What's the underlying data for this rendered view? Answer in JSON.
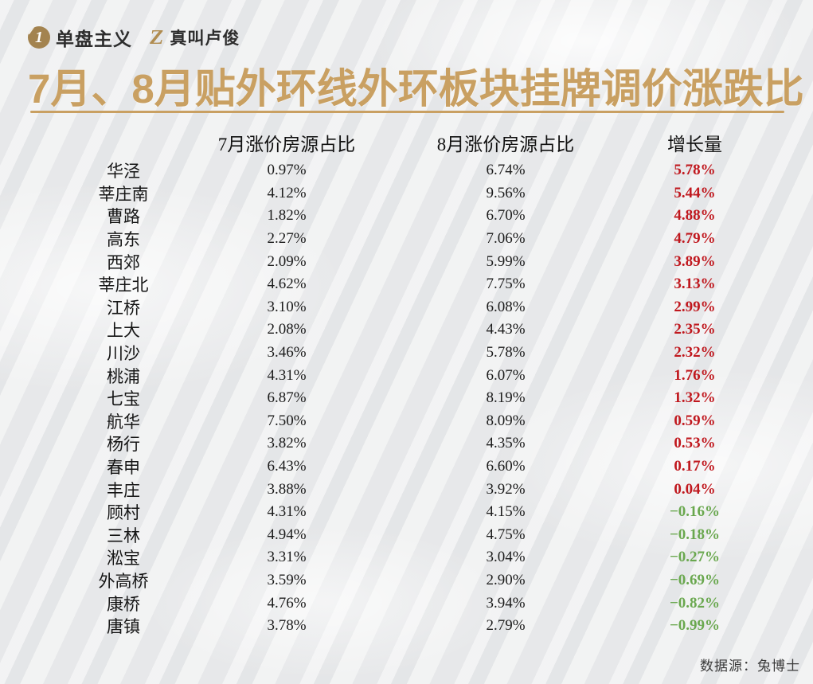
{
  "brand": {
    "logo_one_glyph": "1",
    "name_primary": "单盘主义",
    "logo_z_glyph": "Z",
    "name_secondary": "真叫卢俊"
  },
  "title": "7月、8月贴外环线外环板块挂牌调价涨跌比",
  "colors": {
    "title_gold": "#c9a062",
    "underline_gold": "#c49a5f",
    "positive_red": "#c0181e",
    "negative_green": "#6aa84f",
    "logo_bronze": "#a3834f"
  },
  "chart_data": {
    "type": "table",
    "title": "7月、8月贴外环线外环板块挂牌调价涨跌比",
    "columns": [
      "7月涨价房源占比",
      "8月涨价房源占比",
      "增长量"
    ],
    "rows": [
      {
        "name": "华泾",
        "jul": "0.97%",
        "aug": "6.74%",
        "growth": "5.78%"
      },
      {
        "name": "莘庄南",
        "jul": "4.12%",
        "aug": "9.56%",
        "growth": "5.44%"
      },
      {
        "name": "曹路",
        "jul": "1.82%",
        "aug": "6.70%",
        "growth": "4.88%"
      },
      {
        "name": "高东",
        "jul": "2.27%",
        "aug": "7.06%",
        "growth": "4.79%"
      },
      {
        "name": "西郊",
        "jul": "2.09%",
        "aug": "5.99%",
        "growth": "3.89%"
      },
      {
        "name": "莘庄北",
        "jul": "4.62%",
        "aug": "7.75%",
        "growth": "3.13%"
      },
      {
        "name": "江桥",
        "jul": "3.10%",
        "aug": "6.08%",
        "growth": "2.99%"
      },
      {
        "name": "上大",
        "jul": "2.08%",
        "aug": "4.43%",
        "growth": "2.35%"
      },
      {
        "name": "川沙",
        "jul": "3.46%",
        "aug": "5.78%",
        "growth": "2.32%"
      },
      {
        "name": "桃浦",
        "jul": "4.31%",
        "aug": "6.07%",
        "growth": "1.76%"
      },
      {
        "name": "七宝",
        "jul": "6.87%",
        "aug": "8.19%",
        "growth": "1.32%"
      },
      {
        "name": "航华",
        "jul": "7.50%",
        "aug": "8.09%",
        "growth": "0.59%"
      },
      {
        "name": "杨行",
        "jul": "3.82%",
        "aug": "4.35%",
        "growth": "0.53%"
      },
      {
        "name": "春申",
        "jul": "6.43%",
        "aug": "6.60%",
        "growth": "0.17%"
      },
      {
        "name": "丰庄",
        "jul": "3.88%",
        "aug": "3.92%",
        "growth": "0.04%"
      },
      {
        "name": "顾村",
        "jul": "4.31%",
        "aug": "4.15%",
        "growth": "−0.16%"
      },
      {
        "name": "三林",
        "jul": "4.94%",
        "aug": "4.75%",
        "growth": "−0.18%"
      },
      {
        "name": "淞宝",
        "jul": "3.31%",
        "aug": "3.04%",
        "growth": "−0.27%"
      },
      {
        "name": "外高桥",
        "jul": "3.59%",
        "aug": "2.90%",
        "growth": "−0.69%"
      },
      {
        "name": "康桥",
        "jul": "4.76%",
        "aug": "3.94%",
        "growth": "−0.82%"
      },
      {
        "name": "唐镇",
        "jul": "3.78%",
        "aug": "2.79%",
        "growth": "−0.99%"
      }
    ]
  },
  "footer": {
    "source": "数据源：兔博士"
  }
}
